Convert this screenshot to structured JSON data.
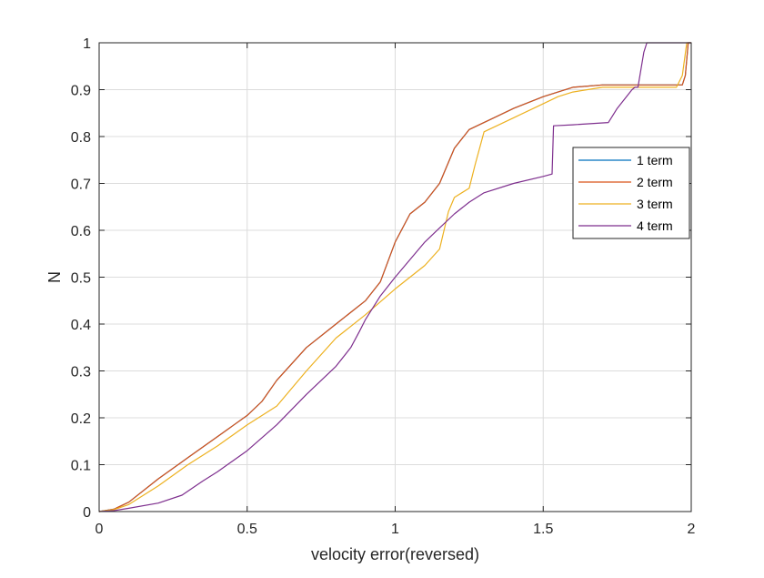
{
  "colors": {
    "axis": "#262626",
    "grid": "#dcdcdc",
    "background": "#ffffff"
  },
  "chart_data": {
    "type": "line",
    "title": "",
    "xlabel": "velocity error(reversed)",
    "ylabel": "N",
    "xlim": [
      0,
      2
    ],
    "ylim": [
      0,
      1
    ],
    "xticks": [
      0,
      0.5,
      1,
      1.5,
      2
    ],
    "xtick_labels": [
      "0",
      "0.5",
      "1",
      "1.5",
      "2"
    ],
    "yticks": [
      0,
      0.1,
      0.2,
      0.3,
      0.4,
      0.5,
      0.6,
      0.7,
      0.8,
      0.9,
      1
    ],
    "ytick_labels": [
      "0",
      "0.1",
      "0.2",
      "0.3",
      "0.4",
      "0.5",
      "0.6",
      "0.7",
      "0.8",
      "0.9",
      "1"
    ],
    "grid": true,
    "legend_position": "right",
    "series": [
      {
        "name": "1 term",
        "color": "#0072BD",
        "x": [
          0,
          0.05,
          0.1,
          0.2,
          0.3,
          0.4,
          0.5,
          0.55,
          0.6,
          0.7,
          0.8,
          0.9,
          0.95,
          1.0,
          1.05,
          1.1,
          1.15,
          1.2,
          1.25,
          1.3,
          1.4,
          1.5,
          1.55,
          1.6,
          1.7,
          1.8,
          1.9,
          1.97,
          1.98,
          1.99,
          2.0
        ],
        "y": [
          0,
          0.005,
          0.02,
          0.07,
          0.115,
          0.16,
          0.205,
          0.235,
          0.28,
          0.35,
          0.4,
          0.45,
          0.49,
          0.575,
          0.635,
          0.66,
          0.7,
          0.775,
          0.815,
          0.83,
          0.86,
          0.885,
          0.895,
          0.905,
          0.91,
          0.91,
          0.91,
          0.91,
          0.93,
          1.0,
          1.0
        ]
      },
      {
        "name": "2 term",
        "color": "#D95319",
        "x": [
          0,
          0.05,
          0.1,
          0.2,
          0.3,
          0.4,
          0.5,
          0.55,
          0.6,
          0.7,
          0.8,
          0.9,
          0.95,
          1.0,
          1.05,
          1.1,
          1.15,
          1.2,
          1.25,
          1.3,
          1.4,
          1.5,
          1.55,
          1.6,
          1.7,
          1.8,
          1.9,
          1.97,
          1.98,
          1.99,
          2.0
        ],
        "y": [
          0,
          0.005,
          0.02,
          0.07,
          0.115,
          0.16,
          0.205,
          0.235,
          0.28,
          0.35,
          0.4,
          0.45,
          0.49,
          0.575,
          0.635,
          0.66,
          0.7,
          0.775,
          0.815,
          0.83,
          0.86,
          0.885,
          0.895,
          0.905,
          0.91,
          0.91,
          0.91,
          0.91,
          0.93,
          1.0,
          1.0
        ]
      },
      {
        "name": "3 term",
        "color": "#EDB120",
        "x": [
          0,
          0.05,
          0.1,
          0.2,
          0.3,
          0.4,
          0.5,
          0.6,
          0.7,
          0.8,
          0.9,
          1.0,
          1.05,
          1.1,
          1.15,
          1.18,
          1.2,
          1.25,
          1.27,
          1.3,
          1.4,
          1.5,
          1.55,
          1.6,
          1.7,
          1.8,
          1.9,
          1.95,
          1.97,
          1.985,
          2.0
        ],
        "y": [
          0,
          0.004,
          0.015,
          0.055,
          0.1,
          0.14,
          0.185,
          0.225,
          0.3,
          0.37,
          0.42,
          0.475,
          0.5,
          0.525,
          0.56,
          0.64,
          0.67,
          0.69,
          0.74,
          0.81,
          0.84,
          0.87,
          0.885,
          0.895,
          0.905,
          0.905,
          0.905,
          0.905,
          0.93,
          1.0,
          1.0
        ]
      },
      {
        "name": "4 term",
        "color": "#7E2F8E",
        "x": [
          0,
          0.05,
          0.1,
          0.2,
          0.28,
          0.35,
          0.4,
          0.5,
          0.6,
          0.7,
          0.8,
          0.85,
          0.88,
          0.9,
          0.95,
          1.0,
          1.1,
          1.15,
          1.2,
          1.25,
          1.3,
          1.4,
          1.5,
          1.53,
          1.535,
          1.6,
          1.72,
          1.75,
          1.8,
          1.81,
          1.82,
          1.84,
          1.85,
          2.0
        ],
        "y": [
          0,
          0.002,
          0.007,
          0.018,
          0.035,
          0.065,
          0.085,
          0.13,
          0.185,
          0.25,
          0.31,
          0.35,
          0.385,
          0.41,
          0.46,
          0.5,
          0.575,
          0.605,
          0.635,
          0.66,
          0.68,
          0.7,
          0.715,
          0.72,
          0.823,
          0.825,
          0.83,
          0.86,
          0.9,
          0.905,
          0.905,
          0.98,
          1.0,
          1.0
        ]
      }
    ]
  }
}
